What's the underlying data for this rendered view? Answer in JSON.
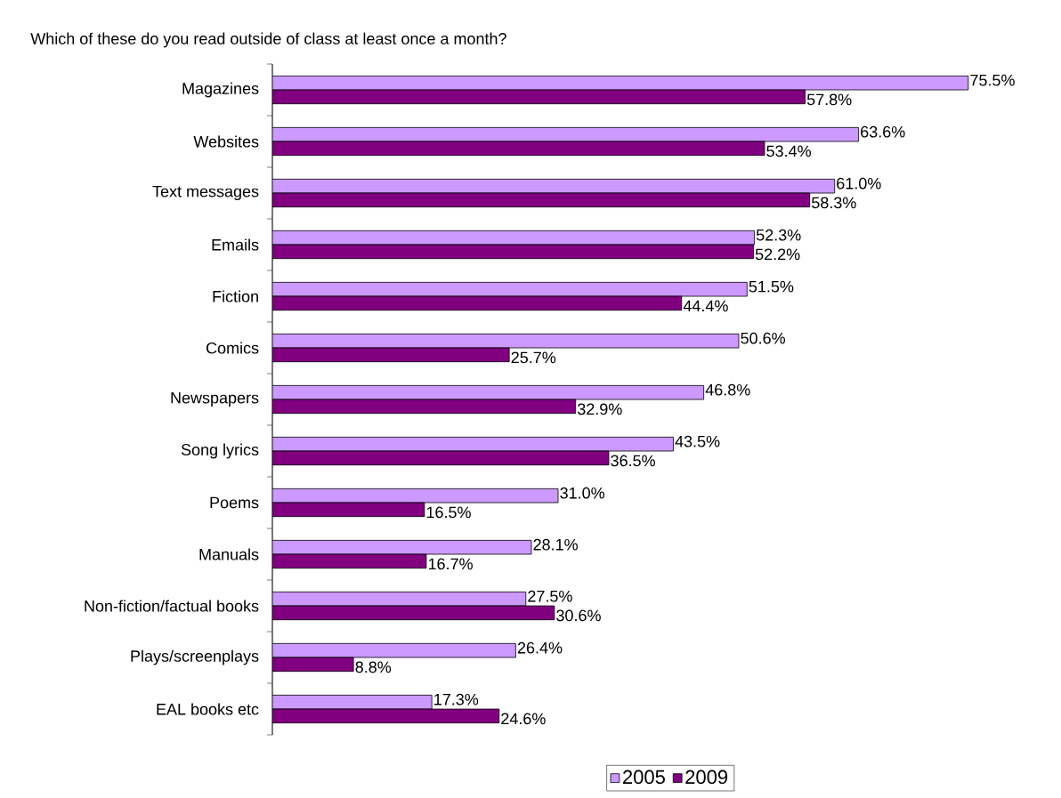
{
  "chart_data": {
    "type": "bar",
    "orientation": "horizontal",
    "title": "Which of these do you read outside of class at least once a month?",
    "categories": [
      "Magazines",
      "Websites",
      "Text messages",
      "Emails",
      "Fiction",
      "Comics",
      "Newspapers",
      "Song lyrics",
      "Poems",
      "Manuals",
      "Non-fiction/factual books",
      "Plays/screenplays",
      "EAL books etc"
    ],
    "series": [
      {
        "name": "2005",
        "color": "#cc99ff",
        "values": [
          75.5,
          63.6,
          61.0,
          52.3,
          51.5,
          50.6,
          46.8,
          43.5,
          31.0,
          28.1,
          27.5,
          26.4,
          17.3
        ],
        "value_labels": [
          "75.5%",
          "63.6%",
          "61.0%",
          "52.3%",
          "51.5%",
          "50.6%",
          "46.8%",
          "43.5%",
          "31.0%",
          "28.1%",
          "27.5%",
          "26.4%",
          "17.3%"
        ]
      },
      {
        "name": "2009",
        "color": "#800080",
        "values": [
          57.8,
          53.4,
          58.3,
          52.2,
          44.4,
          25.7,
          32.9,
          36.5,
          16.5,
          16.7,
          30.6,
          8.8,
          24.6
        ],
        "value_labels": [
          "57.8%",
          "53.4%",
          "58.3%",
          "52.2%",
          "44.4%",
          "25.7%",
          "32.9%",
          "36.5%",
          "16.5%",
          "16.7%",
          "30.6%",
          "8.8%",
          "24.6%"
        ]
      }
    ],
    "legend": "bottom"
  }
}
